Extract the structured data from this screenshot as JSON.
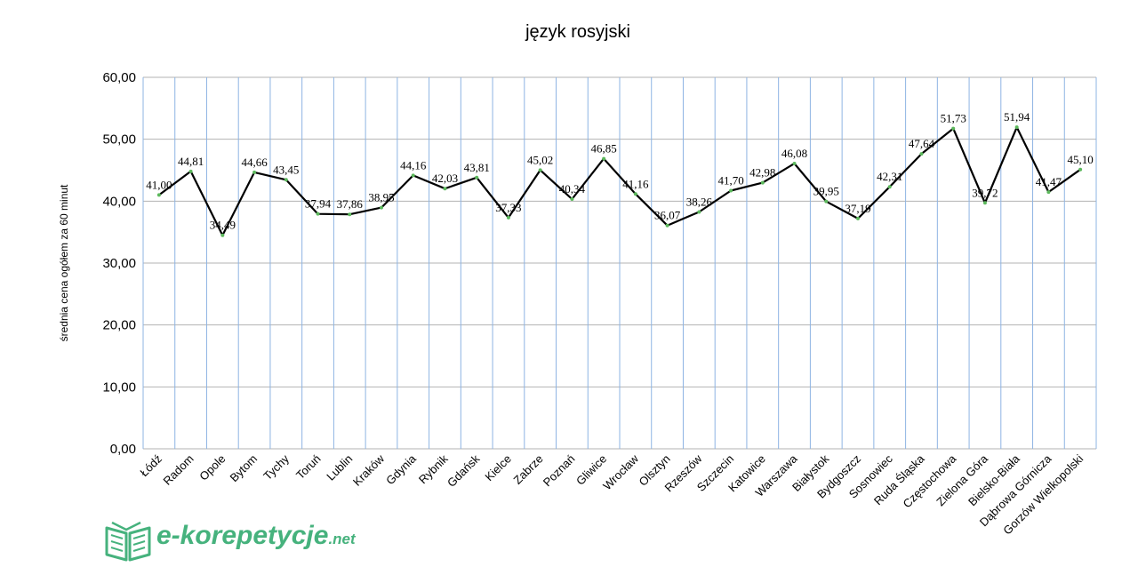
{
  "chart_data": {
    "type": "line",
    "title": "język rosyjski",
    "ylabel": "średnia cena ogółem za 60 minut",
    "xlabel": "",
    "ylim": [
      0,
      60
    ],
    "yticks": [
      "0,00",
      "10,00",
      "20,00",
      "30,00",
      "40,00",
      "50,00",
      "60,00"
    ],
    "categories": [
      "Łódź",
      "Radom",
      "Opole",
      "Bytom",
      "Tychy",
      "Toruń",
      "Lublin",
      "Kraków",
      "Gdynia",
      "Rybnik",
      "Gdańsk",
      "Kielce",
      "Zabrze",
      "Poznań",
      "Gliwice",
      "Wrocław",
      "Olsztyn",
      "Rzeszów",
      "Szczecin",
      "Katowice",
      "Warszawa",
      "Białystok",
      "Bydgoszcz",
      "Sosnowiec",
      "Ruda Śląska",
      "Częstochowa",
      "Zielona Góra",
      "Bielsko-Biała",
      "Dąbrowa Górnicza",
      "Gorzów Wielkopolski"
    ],
    "values": [
      41.0,
      44.81,
      34.49,
      44.66,
      43.45,
      37.94,
      37.86,
      38.95,
      44.16,
      42.03,
      43.81,
      37.33,
      45.02,
      40.34,
      46.85,
      41.16,
      36.07,
      38.26,
      41.7,
      42.98,
      46.08,
      39.95,
      37.19,
      42.31,
      47.64,
      51.73,
      39.72,
      51.94,
      41.47,
      45.1
    ],
    "labels": [
      "41,00",
      "44,81",
      "34,49",
      "44,66",
      "43,45",
      "37,94",
      "37,86",
      "38,95",
      "44,16",
      "42,03",
      "43,81",
      "37,33",
      "45,02",
      "40,34",
      "46,85",
      "41,16",
      "36,07",
      "38,26",
      "41,70",
      "42,98",
      "46,08",
      "39,95",
      "37,19",
      "42,31",
      "47,64",
      "51,73",
      "39,72",
      "51,94",
      "41,47",
      "45,10"
    ],
    "grid": true,
    "colors": {
      "line": "#000000",
      "marker": "#5cb85c",
      "grid_major": "#b3b3b3",
      "grid_vertical": "#8eb4e3"
    }
  },
  "logo": {
    "main": "e-korepetycje",
    "suffix": ".net",
    "color": "#46b27d"
  }
}
